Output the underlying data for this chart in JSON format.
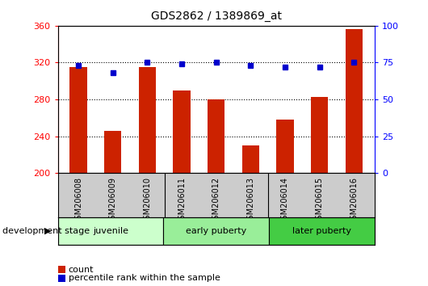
{
  "title": "GDS2862 / 1389869_at",
  "samples": [
    "GSM206008",
    "GSM206009",
    "GSM206010",
    "GSM206011",
    "GSM206012",
    "GSM206013",
    "GSM206014",
    "GSM206015",
    "GSM206016"
  ],
  "counts": [
    315,
    246,
    315,
    290,
    280,
    230,
    258,
    283,
    356
  ],
  "percentiles": [
    73,
    68,
    75,
    74,
    75,
    73,
    72,
    72,
    75
  ],
  "groups": [
    {
      "label": "juvenile",
      "start": 0,
      "end": 3,
      "color": "#ccffcc"
    },
    {
      "label": "early puberty",
      "start": 3,
      "end": 6,
      "color": "#99ee99"
    },
    {
      "label": "later puberty",
      "start": 6,
      "end": 9,
      "color": "#44cc44"
    }
  ],
  "ylim_left": [
    200,
    360
  ],
  "ylim_right": [
    0,
    100
  ],
  "yticks_left": [
    200,
    240,
    280,
    320,
    360
  ],
  "yticks_right": [
    0,
    25,
    50,
    75,
    100
  ],
  "bar_color": "#cc2200",
  "dot_color": "#0000cc",
  "bar_width": 0.5,
  "legend_count_label": "count",
  "legend_pct_label": "percentile rank within the sample",
  "dev_stage_label": "development stage",
  "label_area_color": "#cccccc"
}
